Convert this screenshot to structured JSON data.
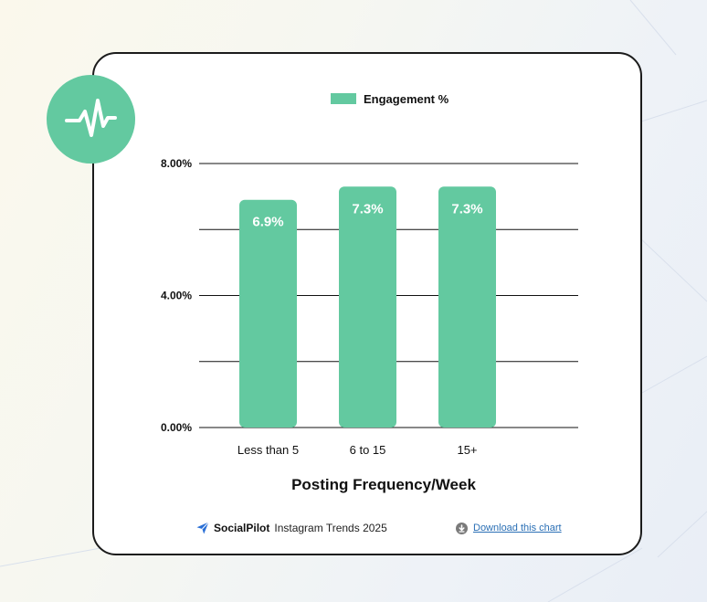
{
  "chart_data": {
    "type": "bar",
    "categories": [
      "Less than 5",
      "6 to 15",
      "15+"
    ],
    "series": [
      {
        "name": "Engagement %",
        "values": [
          6.9,
          7.3,
          7.3
        ],
        "data_labels": [
          "6.9%",
          "7.3%",
          "7.3%"
        ]
      }
    ],
    "xlabel": "Posting Frequency/Week",
    "ylabel": "",
    "ylim": [
      0,
      8
    ],
    "yticks": [
      0,
      4,
      8
    ],
    "ytick_labels": [
      "0.00%",
      "4.00%",
      "8.00%"
    ],
    "grid": true,
    "legend_position": "top-center"
  },
  "colors": {
    "bar": "#63c9a0",
    "badge": "#63c9a0",
    "grid": "#111111",
    "link": "#2a6fb5"
  },
  "header": {
    "badge_icon": "pulse-icon"
  },
  "footer": {
    "brand_icon": "send-arrow-icon",
    "brand_name": "SocialPilot",
    "source_text": "Instagram Trends 2025",
    "download_icon": "download-icon",
    "download_label": "Download this chart"
  }
}
